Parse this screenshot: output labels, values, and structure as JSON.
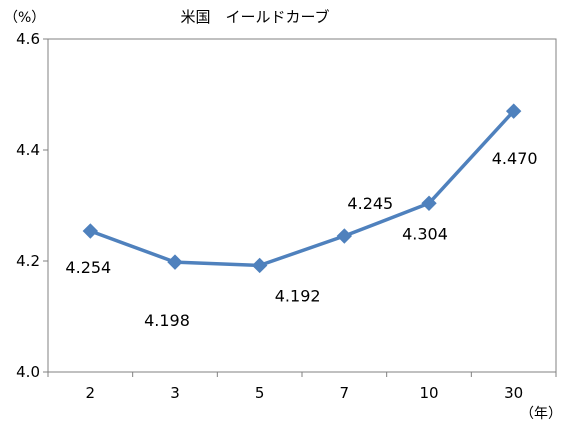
{
  "chart_data": {
    "type": "line",
    "title": "米国　イールドカーブ",
    "ylabel": "（%）",
    "xlabel": "（年）",
    "categories": [
      "2",
      "3",
      "5",
      "7",
      "10",
      "30"
    ],
    "series": [
      {
        "values": [
          4.254,
          4.198,
          4.192,
          4.245,
          4.304,
          4.47
        ]
      }
    ],
    "data_labels": [
      "4.254",
      "4.198",
      "4.192",
      "4.245",
      "4.304",
      "4.470"
    ],
    "ylim": [
      4.0,
      4.6
    ],
    "yticks": [
      4.0,
      4.2,
      4.4,
      4.6
    ],
    "ytick_labels": [
      "4.0",
      "4.2",
      "4.4",
      "4.6"
    ],
    "grid": false,
    "legend": "none",
    "colors": {
      "line": "#4f81bd",
      "marker": "#4f81bd",
      "axis": "#808080"
    }
  }
}
